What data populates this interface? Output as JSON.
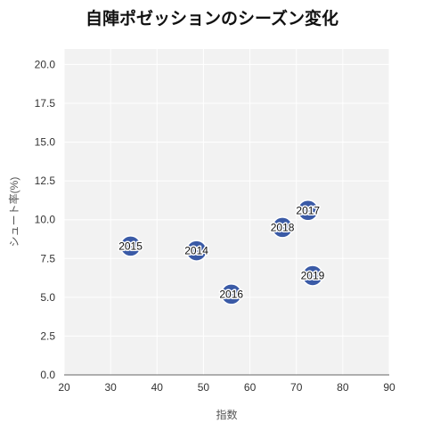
{
  "chart_data": {
    "type": "scatter",
    "title": "自陣ポゼッションのシーズン変化",
    "xlabel": "指数",
    "ylabel": "シュート率(%)",
    "xlim": [
      20,
      90
    ],
    "ylim": [
      0,
      21
    ],
    "xticks": [
      "20",
      "30",
      "40",
      "50",
      "60",
      "70",
      "80",
      "90"
    ],
    "yticks": [
      "0.0",
      "2.5",
      "5.0",
      "7.5",
      "10.0",
      "12.5",
      "15.0",
      "17.5",
      "20.0"
    ],
    "grid": true,
    "point_color": "#3a5aa6",
    "plot_background": "#f2f2f2",
    "points": [
      {
        "label": "2014",
        "x": 48.5,
        "y": 8.0
      },
      {
        "label": "2015",
        "x": 34.3,
        "y": 8.3
      },
      {
        "label": "2016",
        "x": 56.0,
        "y": 5.2
      },
      {
        "label": "2017",
        "x": 72.5,
        "y": 10.6
      },
      {
        "label": "2018",
        "x": 67.0,
        "y": 9.5
      },
      {
        "label": "2019",
        "x": 73.5,
        "y": 6.4
      }
    ]
  }
}
